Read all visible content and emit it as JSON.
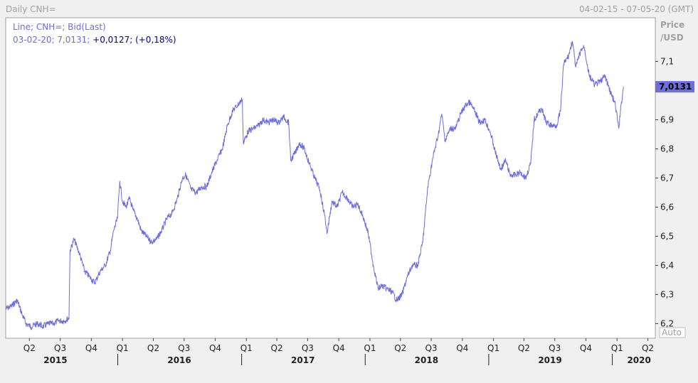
{
  "header": {
    "left_title": "Daily CNH=",
    "date_range": "04-02-15 - 07-05-20 (GMT)"
  },
  "legend": {
    "line1": "Line; CNH=; Bid(Last)",
    "line2_prefix": "03-02-20; 7,0131; ",
    "line2_change": "+0,0127; (+0,18%)"
  },
  "y_axis": {
    "label_line1": "Price",
    "label_line2": "/USD",
    "auto_label": "Auto",
    "last_value_label": "7,0131"
  },
  "colors": {
    "line": "#6d6ddb",
    "plot_bg": "#ffffff",
    "last_value_bg": "#6d6ddb",
    "change_text": "#00008b"
  },
  "chart_data": {
    "type": "line",
    "series": [
      {
        "points": [
          [
            "2015-02-04",
            6.25
          ],
          [
            "2015-02-20",
            6.26
          ],
          [
            "2015-03-10",
            6.28
          ],
          [
            "2015-03-25",
            6.23
          ],
          [
            "2015-04-05",
            6.2
          ],
          [
            "2015-04-20",
            6.19
          ],
          [
            "2015-05-10",
            6.2
          ],
          [
            "2015-05-25",
            6.19
          ],
          [
            "2015-06-10",
            6.2
          ],
          [
            "2015-06-25",
            6.2
          ],
          [
            "2015-07-10",
            6.21
          ],
          [
            "2015-07-28",
            6.21
          ],
          [
            "2015-08-10",
            6.22
          ],
          [
            "2015-08-13",
            6.45
          ],
          [
            "2015-08-25",
            6.49
          ],
          [
            "2015-09-10",
            6.44
          ],
          [
            "2015-09-25",
            6.38
          ],
          [
            "2015-10-10",
            6.36
          ],
          [
            "2015-10-25",
            6.34
          ],
          [
            "2015-11-10",
            6.38
          ],
          [
            "2015-11-25",
            6.4
          ],
          [
            "2015-12-10",
            6.45
          ],
          [
            "2015-12-20",
            6.52
          ],
          [
            "2015-12-31",
            6.56
          ],
          [
            "2016-01-07",
            6.69
          ],
          [
            "2016-01-15",
            6.62
          ],
          [
            "2016-01-25",
            6.6
          ],
          [
            "2016-02-05",
            6.63
          ],
          [
            "2016-02-15",
            6.59
          ],
          [
            "2016-02-28",
            6.56
          ],
          [
            "2016-03-10",
            6.52
          ],
          [
            "2016-03-25",
            6.5
          ],
          [
            "2016-04-10",
            6.48
          ],
          [
            "2016-04-25",
            6.49
          ],
          [
            "2016-05-10",
            6.52
          ],
          [
            "2016-05-25",
            6.56
          ],
          [
            "2016-06-10",
            6.58
          ],
          [
            "2016-06-25",
            6.63
          ],
          [
            "2016-07-10",
            6.7
          ],
          [
            "2016-07-20",
            6.71
          ],
          [
            "2016-08-05",
            6.66
          ],
          [
            "2016-08-20",
            6.65
          ],
          [
            "2016-09-05",
            6.67
          ],
          [
            "2016-09-20",
            6.67
          ],
          [
            "2016-10-05",
            6.72
          ],
          [
            "2016-10-20",
            6.76
          ],
          [
            "2016-11-05",
            6.8
          ],
          [
            "2016-11-20",
            6.88
          ],
          [
            "2016-12-05",
            6.93
          ],
          [
            "2016-12-20",
            6.95
          ],
          [
            "2017-01-03",
            6.97
          ],
          [
            "2017-01-06",
            6.82
          ],
          [
            "2017-01-20",
            6.86
          ],
          [
            "2017-02-05",
            6.87
          ],
          [
            "2017-02-20",
            6.88
          ],
          [
            "2017-03-05",
            6.9
          ],
          [
            "2017-03-20",
            6.89
          ],
          [
            "2017-04-05",
            6.9
          ],
          [
            "2017-04-20",
            6.89
          ],
          [
            "2017-05-05",
            6.91
          ],
          [
            "2017-05-20",
            6.89
          ],
          [
            "2017-05-26",
            6.76
          ],
          [
            "2017-06-10",
            6.79
          ],
          [
            "2017-06-20",
            6.82
          ],
          [
            "2017-07-05",
            6.8
          ],
          [
            "2017-07-20",
            6.75
          ],
          [
            "2017-08-05",
            6.7
          ],
          [
            "2017-08-20",
            6.66
          ],
          [
            "2017-09-05",
            6.56
          ],
          [
            "2017-09-10",
            6.51
          ],
          [
            "2017-09-25",
            6.62
          ],
          [
            "2017-10-10",
            6.6
          ],
          [
            "2017-10-25",
            6.65
          ],
          [
            "2017-11-10",
            6.63
          ],
          [
            "2017-11-25",
            6.6
          ],
          [
            "2017-12-10",
            6.61
          ],
          [
            "2017-12-25",
            6.57
          ],
          [
            "2018-01-10",
            6.51
          ],
          [
            "2018-01-25",
            6.4
          ],
          [
            "2018-02-08",
            6.32
          ],
          [
            "2018-02-20",
            6.33
          ],
          [
            "2018-03-05",
            6.32
          ],
          [
            "2018-03-20",
            6.31
          ],
          [
            "2018-04-05",
            6.28
          ],
          [
            "2018-04-20",
            6.3
          ],
          [
            "2018-05-05",
            6.36
          ],
          [
            "2018-05-20",
            6.4
          ],
          [
            "2018-06-05",
            6.4
          ],
          [
            "2018-06-20",
            6.48
          ],
          [
            "2018-07-05",
            6.67
          ],
          [
            "2018-07-20",
            6.77
          ],
          [
            "2018-08-05",
            6.85
          ],
          [
            "2018-08-15",
            6.92
          ],
          [
            "2018-08-25",
            6.83
          ],
          [
            "2018-09-10",
            6.87
          ],
          [
            "2018-09-25",
            6.87
          ],
          [
            "2018-10-10",
            6.92
          ],
          [
            "2018-10-25",
            6.95
          ],
          [
            "2018-11-05",
            6.96
          ],
          [
            "2018-11-20",
            6.93
          ],
          [
            "2018-12-05",
            6.89
          ],
          [
            "2018-12-20",
            6.9
          ],
          [
            "2019-01-05",
            6.86
          ],
          [
            "2019-01-20",
            6.79
          ],
          [
            "2019-02-05",
            6.73
          ],
          [
            "2019-02-20",
            6.76
          ],
          [
            "2019-03-05",
            6.71
          ],
          [
            "2019-03-20",
            6.71
          ],
          [
            "2019-04-05",
            6.72
          ],
          [
            "2019-04-20",
            6.7
          ],
          [
            "2019-05-05",
            6.75
          ],
          [
            "2019-05-15",
            6.9
          ],
          [
            "2019-06-05",
            6.94
          ],
          [
            "2019-06-20",
            6.89
          ],
          [
            "2019-07-05",
            6.88
          ],
          [
            "2019-07-20",
            6.88
          ],
          [
            "2019-08-01",
            6.93
          ],
          [
            "2019-08-10",
            7.09
          ],
          [
            "2019-08-25",
            7.12
          ],
          [
            "2019-09-05",
            7.17
          ],
          [
            "2019-09-15",
            7.08
          ],
          [
            "2019-10-01",
            7.14
          ],
          [
            "2019-10-10",
            7.15
          ],
          [
            "2019-10-25",
            7.05
          ],
          [
            "2019-11-10",
            7.02
          ],
          [
            "2019-11-25",
            7.03
          ],
          [
            "2019-12-10",
            7.05
          ],
          [
            "2019-12-25",
            7.0
          ],
          [
            "2020-01-10",
            6.95
          ],
          [
            "2020-01-20",
            6.87
          ],
          [
            "2020-01-28",
            6.96
          ],
          [
            "2020-02-03",
            7.0131
          ]
        ]
      }
    ],
    "ylim": [
      6.15,
      7.25
    ],
    "xlim": [
      "2015-02-04",
      "2020-05-07"
    ],
    "y_ticks": [
      "6,2",
      "6,3",
      "6,4",
      "6,5",
      "6,6",
      "6,7",
      "6,8",
      "6,9",
      "7,1"
    ],
    "y_tick_values": [
      6.2,
      6.3,
      6.4,
      6.5,
      6.6,
      6.7,
      6.8,
      6.9,
      7.1
    ],
    "quarter_ticks": [
      {
        "label": "Q2",
        "date": "2015-04-15"
      },
      {
        "label": "Q3",
        "date": "2015-07-15"
      },
      {
        "label": "Q4",
        "date": "2015-10-15"
      },
      {
        "label": "Q1",
        "date": "2016-01-15"
      },
      {
        "label": "Q2",
        "date": "2016-04-15"
      },
      {
        "label": "Q3",
        "date": "2016-07-15"
      },
      {
        "label": "Q4",
        "date": "2016-10-15"
      },
      {
        "label": "Q1",
        "date": "2017-01-15"
      },
      {
        "label": "Q2",
        "date": "2017-04-15"
      },
      {
        "label": "Q3",
        "date": "2017-07-15"
      },
      {
        "label": "Q4",
        "date": "2017-10-15"
      },
      {
        "label": "Q1",
        "date": "2018-01-15"
      },
      {
        "label": "Q2",
        "date": "2018-04-15"
      },
      {
        "label": "Q3",
        "date": "2018-07-15"
      },
      {
        "label": "Q4",
        "date": "2018-10-15"
      },
      {
        "label": "Q1",
        "date": "2019-01-15"
      },
      {
        "label": "Q2",
        "date": "2019-04-15"
      },
      {
        "label": "Q3",
        "date": "2019-07-15"
      },
      {
        "label": "Q4",
        "date": "2019-10-15"
      },
      {
        "label": "Q1",
        "date": "2020-01-15"
      },
      {
        "label": "Q2",
        "date": "2020-04-15"
      }
    ],
    "year_labels": [
      {
        "label": "2015",
        "date": "2015-07-01"
      },
      {
        "label": "2016",
        "date": "2016-07-01"
      },
      {
        "label": "2017",
        "date": "2017-07-01"
      },
      {
        "label": "2018",
        "date": "2018-07-01"
      },
      {
        "label": "2019",
        "date": "2019-07-01"
      },
      {
        "label": "2020",
        "date": "2020-03-20"
      }
    ],
    "year_boundaries": [
      "2016-01-01",
      "2017-01-01",
      "2018-01-01",
      "2019-01-01",
      "2020-01-01"
    ],
    "grid": false
  }
}
